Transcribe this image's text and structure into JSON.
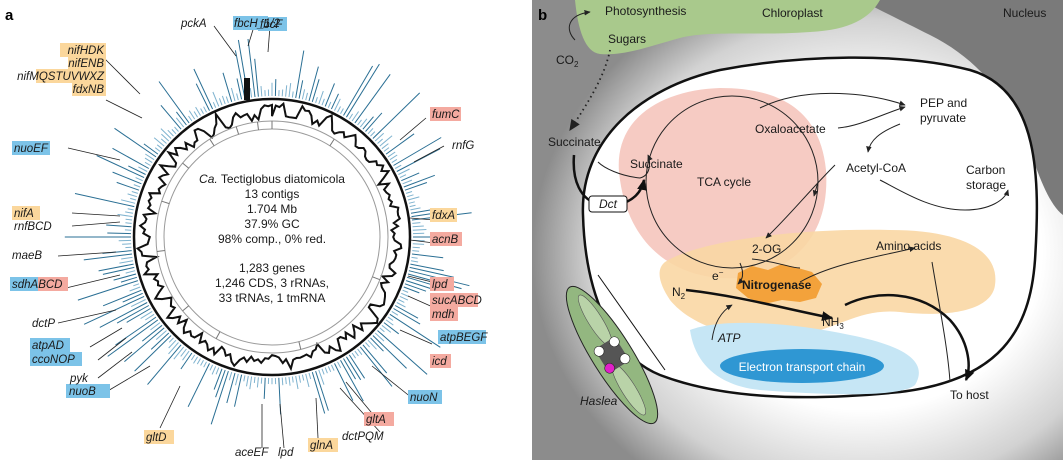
{
  "panel_a": {
    "letter": "a",
    "center_text": {
      "species_prefix": "Ca.",
      "species_name": "Tectiglobus diatomicola",
      "contigs": "13 contigs",
      "size": "1.704 Mb",
      "gc": "37.9% GC",
      "completeness": "98% comp., 0% red.",
      "genes": "1,283 genes",
      "cds_rrna": "1,246 CDS, 3 rRNAs,",
      "trna": "33 tRNAs, 1 tmRNA"
    },
    "gene_labels": [
      {
        "text": "pckA",
        "highlight": "none"
      },
      {
        "text": "fbcH_1/2",
        "highlight": "blue"
      },
      {
        "text": "fbcF",
        "highlight": "blue"
      },
      {
        "text": "nifHDK",
        "highlight": "orange"
      },
      {
        "text": "nifENB",
        "highlight": "orange"
      },
      {
        "text": "nifMQSTUVWXZ",
        "highlight": "orange"
      },
      {
        "text": "fdxNB",
        "highlight": "orange"
      },
      {
        "text": "fumC",
        "highlight": "red"
      },
      {
        "text": "rnfG",
        "highlight": "none"
      },
      {
        "text": "nuoEF",
        "highlight": "blue"
      },
      {
        "text": "nifA",
        "highlight": "orange"
      },
      {
        "text": "rnfBCD",
        "highlight": "none"
      },
      {
        "text": "fdxA",
        "highlight": "orange"
      },
      {
        "text": "acnB",
        "highlight": "red"
      },
      {
        "text": "maeB",
        "highlight": "none"
      },
      {
        "text": "sdhABCD",
        "highlight": "blue-red"
      },
      {
        "text": "lpd",
        "highlight": "red"
      },
      {
        "text": "sucABCD",
        "highlight": "red"
      },
      {
        "text": "mdh",
        "highlight": "red"
      },
      {
        "text": "atpBEGF",
        "highlight": "blue"
      },
      {
        "text": "dctP",
        "highlight": "none"
      },
      {
        "text": "atpAD",
        "highlight": "blue"
      },
      {
        "text": "ccoNOP",
        "highlight": "blue"
      },
      {
        "text": "icd",
        "highlight": "red"
      },
      {
        "text": "pyk",
        "highlight": "none"
      },
      {
        "text": "nuoB",
        "highlight": "blue"
      },
      {
        "text": "nuoN",
        "highlight": "blue"
      },
      {
        "text": "gltA",
        "highlight": "red"
      },
      {
        "text": "gltD",
        "highlight": "orange"
      },
      {
        "text": "dctPQM",
        "highlight": "none"
      },
      {
        "text": "aceEF",
        "highlight": "none"
      },
      {
        "text": "lpd",
        "highlight": "none"
      },
      {
        "text": "glnA",
        "highlight": "orange"
      }
    ]
  },
  "panel_b": {
    "letter": "b",
    "labels": {
      "photosynthesis": "Photosynthesis",
      "chloroplast": "Chloroplast",
      "nucleus": "Nucleus",
      "sugars": "Sugars",
      "co2_main": "CO",
      "co2_sub": "2",
      "succinate_out": "Succinate",
      "dct": "Dct",
      "succinate_in": "Succinate",
      "oxaloacetate": "Oxaloacetate",
      "pep_line1": "PEP and",
      "pep_line2": "pyruvate",
      "tca": "TCA cycle",
      "acetyl_coa": "Acetyl-CoA",
      "carbon_line1": "Carbon",
      "carbon_line2": "storage",
      "two_og": "2-OG",
      "amino_acids": "Amino acids",
      "e_minus": "e",
      "e_sup": "−",
      "nitrogenase": "Nitrogenase",
      "n2_main": "N",
      "n2_sub": "2",
      "nh3_main": "NH",
      "nh3_sub": "3",
      "atp": "ATP",
      "etc": "Electron transport chain",
      "haslea": "Haslea",
      "to_host": "To host"
    },
    "colors": {
      "chloroplast": "#a9c98c",
      "tca_pink": "#f6cbc3",
      "nitrogen_orange": "#fad7a4",
      "nitrogenase": "#f3a23b",
      "etc_blue": "#2f97d3",
      "etc_light": "#c6e6f5",
      "haslea_green": "#93b780",
      "magenta": "#e020c8"
    }
  }
}
